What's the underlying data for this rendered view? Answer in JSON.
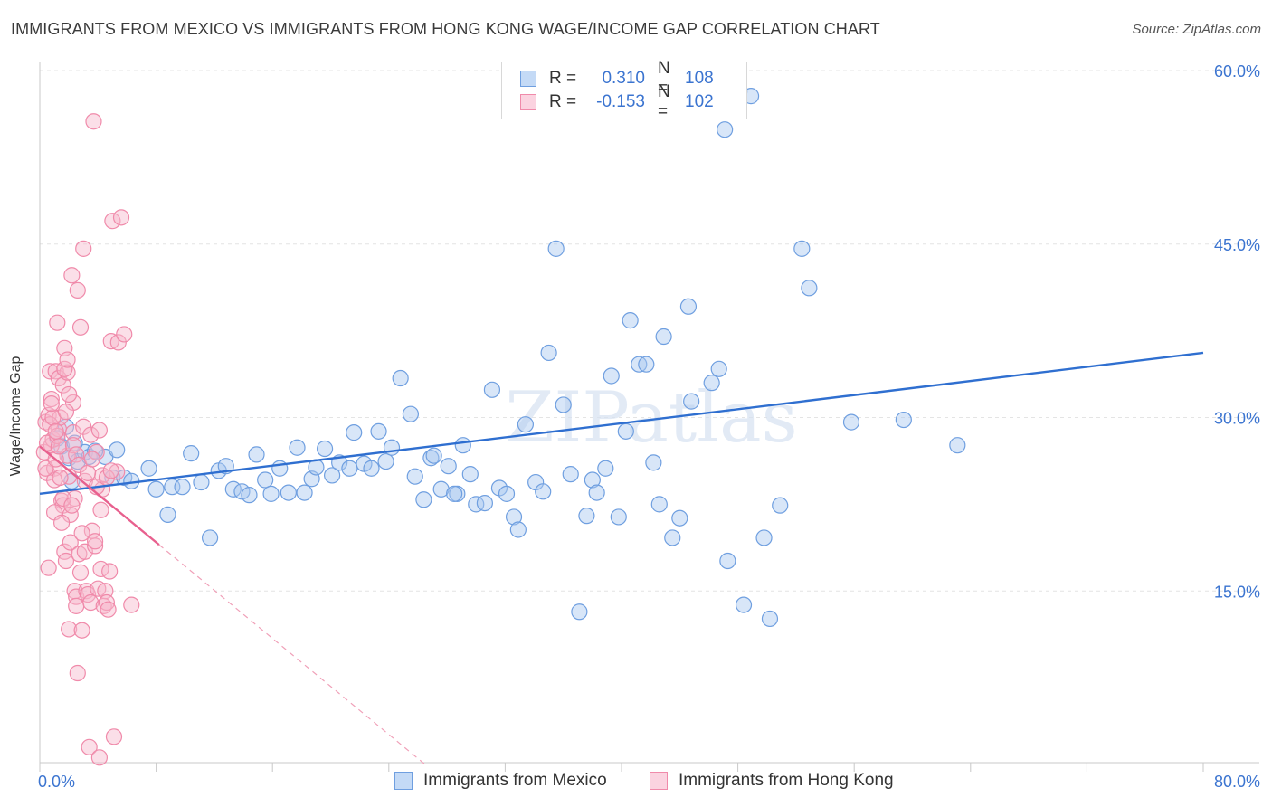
{
  "title": "IMMIGRANTS FROM MEXICO VS IMMIGRANTS FROM HONG KONG WAGE/INCOME GAP CORRELATION CHART",
  "source": "Source: ZipAtlas.com",
  "watermark": "ZIPatlas",
  "legend": {
    "rows": [
      {
        "r_label": "R =",
        "r_value": "0.310",
        "n_label": "N =",
        "n_value": "108",
        "color": "#a9c8f0"
      },
      {
        "r_label": "R =",
        "r_value": "-0.153",
        "n_label": "N =",
        "n_value": "102",
        "color": "#f6b8cc"
      }
    ]
  },
  "bottom_legend": [
    {
      "label": "Immigrants from Mexico",
      "color": "#a9c8f0"
    },
    {
      "label": "Immigrants from Hong Kong",
      "color": "#f6b8cc"
    }
  ],
  "chart_data": {
    "type": "scatter",
    "title": "IMMIGRANTS FROM MEXICO VS IMMIGRANTS FROM HONG KONG WAGE/INCOME GAP CORRELATION CHART",
    "xlabel": "",
    "ylabel": "Wage/Income Gap",
    "xlim": [
      0,
      80
    ],
    "ylim": [
      0,
      62
    ],
    "x_ticks_labels": [
      "0.0%",
      "80.0%"
    ],
    "y_ticks": [
      15,
      30,
      45,
      60
    ],
    "y_ticks_labels": [
      "15.0%",
      "30.0%",
      "45.0%",
      "60.0%"
    ],
    "grid": true,
    "series": [
      {
        "name": "Immigrants from Mexico",
        "color": "#6f9fe0",
        "fill": "#a9c8f0",
        "trend": {
          "x": [
            0,
            80
          ],
          "y": [
            23.4,
            35.6
          ],
          "color": "#2f6fd0"
        },
        "points": [
          [
            1.2,
            28.2
          ],
          [
            1.5,
            27.5
          ],
          [
            1.8,
            29.2
          ],
          [
            2.0,
            26.5
          ],
          [
            2.2,
            24.5
          ],
          [
            2.6,
            26.2
          ],
          [
            3.1,
            27.0
          ],
          [
            3.4,
            26.6
          ],
          [
            4.5,
            26.6
          ],
          [
            5.0,
            24.8
          ],
          [
            5.3,
            27.2
          ],
          [
            5.8,
            24.8
          ],
          [
            6.3,
            24.5
          ],
          [
            7.5,
            25.6
          ],
          [
            8.0,
            23.8
          ],
          [
            8.8,
            21.6
          ],
          [
            9.1,
            24.0
          ],
          [
            9.8,
            24.0
          ],
          [
            10.4,
            26.9
          ],
          [
            11.1,
            24.4
          ],
          [
            11.7,
            19.6
          ],
          [
            12.3,
            25.4
          ],
          [
            12.8,
            25.8
          ],
          [
            13.3,
            23.8
          ],
          [
            13.9,
            23.6
          ],
          [
            14.4,
            23.3
          ],
          [
            14.9,
            26.8
          ],
          [
            15.5,
            24.6
          ],
          [
            15.9,
            23.4
          ],
          [
            16.5,
            25.6
          ],
          [
            17.1,
            23.5
          ],
          [
            17.7,
            27.4
          ],
          [
            18.2,
            23.5
          ],
          [
            18.7,
            24.7
          ],
          [
            19.0,
            25.7
          ],
          [
            19.6,
            27.3
          ],
          [
            20.1,
            25.0
          ],
          [
            20.6,
            26.1
          ],
          [
            21.3,
            25.6
          ],
          [
            21.6,
            28.7
          ],
          [
            22.3,
            26.0
          ],
          [
            22.8,
            25.6
          ],
          [
            23.3,
            28.8
          ],
          [
            23.8,
            26.2
          ],
          [
            24.2,
            27.4
          ],
          [
            24.8,
            33.4
          ],
          [
            25.5,
            30.3
          ],
          [
            25.8,
            24.9
          ],
          [
            26.4,
            22.9
          ],
          [
            26.9,
            26.5
          ],
          [
            27.1,
            26.7
          ],
          [
            27.6,
            23.8
          ],
          [
            28.1,
            25.8
          ],
          [
            28.7,
            23.4
          ],
          [
            29.1,
            27.6
          ],
          [
            29.6,
            25.1
          ],
          [
            30.0,
            22.5
          ],
          [
            30.6,
            22.6
          ],
          [
            31.1,
            32.4
          ],
          [
            31.6,
            23.9
          ],
          [
            32.1,
            23.4
          ],
          [
            32.6,
            21.4
          ],
          [
            32.9,
            20.3
          ],
          [
            33.4,
            29.4
          ],
          [
            34.1,
            24.4
          ],
          [
            34.6,
            23.6
          ],
          [
            35.0,
            35.6
          ],
          [
            35.5,
            44.6
          ],
          [
            36.0,
            31.1
          ],
          [
            36.5,
            25.1
          ],
          [
            37.1,
            13.2
          ],
          [
            37.6,
            21.5
          ],
          [
            38.0,
            24.6
          ],
          [
            38.3,
            23.5
          ],
          [
            38.9,
            25.6
          ],
          [
            39.3,
            33.6
          ],
          [
            39.8,
            21.4
          ],
          [
            40.3,
            28.8
          ],
          [
            40.6,
            38.4
          ],
          [
            41.2,
            34.6
          ],
          [
            41.7,
            34.6
          ],
          [
            42.2,
            26.1
          ],
          [
            42.6,
            22.5
          ],
          [
            42.9,
            37.0
          ],
          [
            43.5,
            19.6
          ],
          [
            44.0,
            21.3
          ],
          [
            44.6,
            39.6
          ],
          [
            44.8,
            31.4
          ],
          [
            45.4,
            56.8
          ],
          [
            45.8,
            56.6
          ],
          [
            46.2,
            33.0
          ],
          [
            46.7,
            34.2
          ],
          [
            47.1,
            54.9
          ],
          [
            47.3,
            17.6
          ],
          [
            48.1,
            58.2
          ],
          [
            48.4,
            13.8
          ],
          [
            48.9,
            57.8
          ],
          [
            49.8,
            19.6
          ],
          [
            50.2,
            12.6
          ],
          [
            50.9,
            22.4
          ],
          [
            52.4,
            44.6
          ],
          [
            52.9,
            41.2
          ],
          [
            55.8,
            29.6
          ],
          [
            59.4,
            29.8
          ],
          [
            63.1,
            27.6
          ],
          [
            2.4,
            27.8
          ],
          [
            3.8,
            27.1
          ],
          [
            28.5,
            23.4
          ]
        ]
      },
      {
        "name": "Immigrants from Hong Kong",
        "color": "#f08aaa",
        "fill": "#f6b8cc",
        "trend": {
          "x": [
            0,
            8.2
          ],
          "y": [
            27.5,
            19.0
          ],
          "color": "#e8608e"
        },
        "trend_extension": {
          "x": [
            8.2,
            26.5
          ],
          "y": [
            19.0,
            0
          ],
          "color": "#f0a0b8"
        },
        "points": [
          [
            0.3,
            27.0
          ],
          [
            0.4,
            29.6
          ],
          [
            0.5,
            25.2
          ],
          [
            0.6,
            30.2
          ],
          [
            0.6,
            17.0
          ],
          [
            0.7,
            34.0
          ],
          [
            0.8,
            31.6
          ],
          [
            0.8,
            27.6
          ],
          [
            0.9,
            28.1
          ],
          [
            1.0,
            25.6
          ],
          [
            1.0,
            24.6
          ],
          [
            1.1,
            34.0
          ],
          [
            1.2,
            38.2
          ],
          [
            1.3,
            29.0
          ],
          [
            1.3,
            33.4
          ],
          [
            1.4,
            30.0
          ],
          [
            1.5,
            22.8
          ],
          [
            1.6,
            22.4
          ],
          [
            1.6,
            32.8
          ],
          [
            1.7,
            36.0
          ],
          [
            1.7,
            18.4
          ],
          [
            1.8,
            17.6
          ],
          [
            1.9,
            33.9
          ],
          [
            1.9,
            26.7
          ],
          [
            2.0,
            24.9
          ],
          [
            2.0,
            11.7
          ],
          [
            2.1,
            21.6
          ],
          [
            2.1,
            19.2
          ],
          [
            2.2,
            42.3
          ],
          [
            2.3,
            31.3
          ],
          [
            2.3,
            28.7
          ],
          [
            2.4,
            23.0
          ],
          [
            2.4,
            15.0
          ],
          [
            2.5,
            14.5
          ],
          [
            2.5,
            13.7
          ],
          [
            2.6,
            41.0
          ],
          [
            2.6,
            7.9
          ],
          [
            2.7,
            18.2
          ],
          [
            2.8,
            37.8
          ],
          [
            2.8,
            16.6
          ],
          [
            2.9,
            11.6
          ],
          [
            3.0,
            44.6
          ],
          [
            3.0,
            29.2
          ],
          [
            3.1,
            18.4
          ],
          [
            3.2,
            15.0
          ],
          [
            3.3,
            14.7
          ],
          [
            3.4,
            1.5
          ],
          [
            3.5,
            14.0
          ],
          [
            3.5,
            28.5
          ],
          [
            3.6,
            20.2
          ],
          [
            3.7,
            55.6
          ],
          [
            3.8,
            18.9
          ],
          [
            3.8,
            19.3
          ],
          [
            3.9,
            27.0
          ],
          [
            4.0,
            15.2
          ],
          [
            4.1,
            0.6
          ],
          [
            4.1,
            28.9
          ],
          [
            4.2,
            16.9
          ],
          [
            4.3,
            25.0
          ],
          [
            4.3,
            23.8
          ],
          [
            4.4,
            13.7
          ],
          [
            4.5,
            15.0
          ],
          [
            4.6,
            14.0
          ],
          [
            4.7,
            13.4
          ],
          [
            4.8,
            16.7
          ],
          [
            4.9,
            36.6
          ],
          [
            5.0,
            47.0
          ],
          [
            5.1,
            2.4
          ],
          [
            5.3,
            25.3
          ],
          [
            5.4,
            36.5
          ],
          [
            5.6,
            47.3
          ],
          [
            5.8,
            37.2
          ],
          [
            6.3,
            13.8
          ],
          [
            0.4,
            25.6
          ],
          [
            0.5,
            27.8
          ],
          [
            0.7,
            29.4
          ],
          [
            0.9,
            30.0
          ],
          [
            1.0,
            21.8
          ],
          [
            1.1,
            26.4
          ],
          [
            1.2,
            28.4
          ],
          [
            1.3,
            27.5
          ],
          [
            1.4,
            24.8
          ],
          [
            1.5,
            20.9
          ],
          [
            1.6,
            23.0
          ],
          [
            1.7,
            34.2
          ],
          [
            1.8,
            30.5
          ],
          [
            1.9,
            35.0
          ],
          [
            2.0,
            32.0
          ],
          [
            2.2,
            22.4
          ],
          [
            2.3,
            27.6
          ],
          [
            2.5,
            26.8
          ],
          [
            2.7,
            25.9
          ],
          [
            2.9,
            20.0
          ],
          [
            3.1,
            24.5
          ],
          [
            3.3,
            25.2
          ],
          [
            3.6,
            26.4
          ],
          [
            3.9,
            24.0
          ],
          [
            4.2,
            22.0
          ],
          [
            4.6,
            24.8
          ],
          [
            4.9,
            25.4
          ],
          [
            0.8,
            31.2
          ],
          [
            1.1,
            28.8
          ]
        ]
      }
    ]
  }
}
